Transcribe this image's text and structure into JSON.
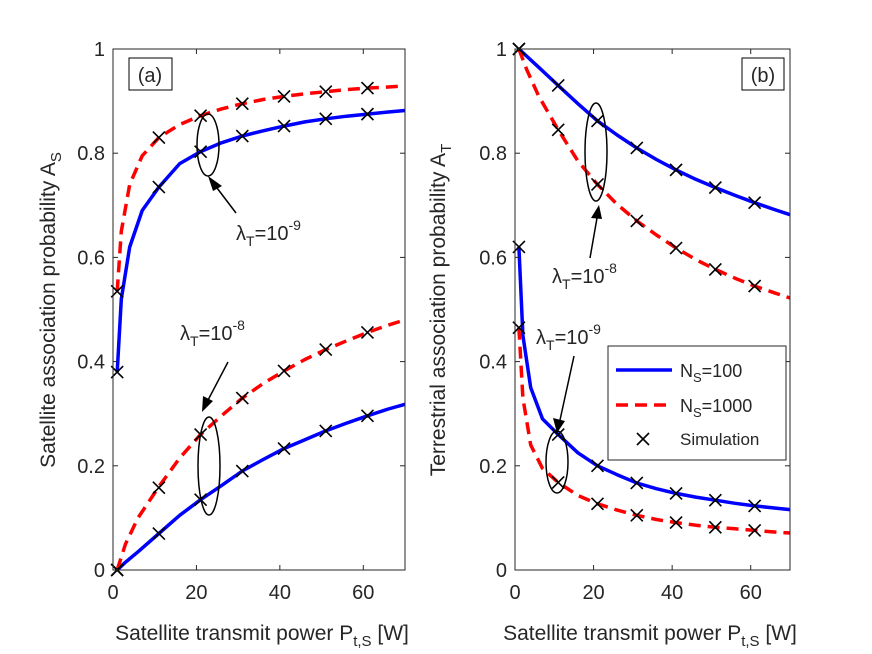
{
  "chart_data": [
    {
      "type": "line",
      "panel_label": "(a)",
      "xlabel": "Satellite transmit power P",
      "xlabel_sub": "t,S",
      "xlabel_unit": " [W]",
      "ylabel": "Satellite association probability A",
      "ylabel_sub": "S",
      "xlim": [
        0,
        70
      ],
      "ylim": [
        0,
        1
      ],
      "xticks": [
        0,
        20,
        40,
        60
      ],
      "yticks": [
        0,
        0.2,
        0.4,
        0.6,
        0.8,
        1
      ],
      "ytick_labels": [
        "0",
        "0.2",
        "0.4",
        "0.6",
        "0.8",
        "1"
      ],
      "series": [
        {
          "name": "N_S=100, λ_T=10^-9",
          "style": "solid",
          "color": "#0000ff",
          "x": [
            1,
            2,
            4,
            7,
            11,
            16,
            21,
            26,
            31,
            36,
            41,
            46,
            51,
            56,
            61,
            66,
            70
          ],
          "y": [
            0.38,
            0.52,
            0.62,
            0.69,
            0.735,
            0.78,
            0.803,
            0.82,
            0.833,
            0.843,
            0.852,
            0.86,
            0.866,
            0.871,
            0.875,
            0.879,
            0.882
          ]
        },
        {
          "name": "N_S=1000, λ_T=10^-9",
          "style": "dashed",
          "color": "#ff0000",
          "x": [
            1,
            2,
            4,
            7,
            11,
            16,
            21,
            26,
            31,
            36,
            41,
            46,
            51,
            56,
            61,
            66,
            70
          ],
          "y": [
            0.535,
            0.65,
            0.74,
            0.795,
            0.83,
            0.855,
            0.872,
            0.885,
            0.895,
            0.903,
            0.909,
            0.914,
            0.918,
            0.922,
            0.925,
            0.927,
            0.929
          ]
        },
        {
          "name": "N_S=100, λ_T=10^-8",
          "style": "solid",
          "color": "#0000ff",
          "x": [
            1,
            3,
            6,
            11,
            16,
            21,
            26,
            31,
            36,
            41,
            46,
            51,
            56,
            61,
            66,
            70
          ],
          "y": [
            0.0,
            0.015,
            0.035,
            0.07,
            0.105,
            0.135,
            0.162,
            0.19,
            0.212,
            0.233,
            0.25,
            0.267,
            0.282,
            0.296,
            0.309,
            0.318
          ]
        },
        {
          "name": "N_S=1000, λ_T=10^-8",
          "style": "dashed",
          "color": "#ff0000",
          "x": [
            1,
            3,
            6,
            11,
            16,
            21,
            26,
            31,
            36,
            41,
            46,
            51,
            56,
            61,
            66,
            70
          ],
          "y": [
            0.0,
            0.05,
            0.1,
            0.16,
            0.215,
            0.26,
            0.296,
            0.33,
            0.358,
            0.382,
            0.404,
            0.423,
            0.44,
            0.456,
            0.47,
            0.48
          ]
        }
      ],
      "markers": [
        {
          "x": [
            1,
            11,
            21,
            31,
            41,
            51,
            61
          ],
          "y": [
            0.38,
            0.735,
            0.803,
            0.833,
            0.852,
            0.866,
            0.875
          ]
        },
        {
          "x": [
            1,
            11,
            21,
            31,
            41,
            51,
            61
          ],
          "y": [
            0.535,
            0.83,
            0.872,
            0.895,
            0.909,
            0.918,
            0.925
          ]
        },
        {
          "x": [
            1,
            11,
            21,
            31,
            41,
            51,
            61
          ],
          "y": [
            0.0,
            0.07,
            0.135,
            0.19,
            0.233,
            0.267,
            0.296
          ]
        },
        {
          "x": [
            1,
            11,
            21,
            31,
            41,
            51,
            61
          ],
          "y": [
            0.0,
            0.158,
            0.26,
            0.33,
            0.382,
            0.423,
            0.456
          ]
        }
      ],
      "annotations": [
        {
          "label": "λ",
          "sub": "T",
          "eq": "=10",
          "sup": "-9"
        },
        {
          "label": "λ",
          "sub": "T",
          "eq": "=10",
          "sup": "-8"
        }
      ]
    },
    {
      "type": "line",
      "panel_label": "(b)",
      "xlabel": "Satellite transmit power P",
      "xlabel_sub": "t,S",
      "xlabel_unit": " [W]",
      "ylabel": "Terrestrial association probability A",
      "ylabel_sub": "T",
      "xlim": [
        0,
        70
      ],
      "ylim": [
        0,
        1
      ],
      "xticks": [
        0,
        20,
        40,
        60
      ],
      "yticks": [
        0,
        0.2,
        0.4,
        0.6,
        0.8,
        1
      ],
      "ytick_labels": [
        "0",
        "0.2",
        "0.4",
        "0.6",
        "0.8",
        "1"
      ],
      "series": [
        {
          "name": "N_S=100, λ_T=10^-8",
          "style": "solid",
          "color": "#0000ff",
          "x": [
            1,
            6,
            11,
            16,
            21,
            26,
            31,
            36,
            41,
            46,
            51,
            56,
            61,
            66,
            70
          ],
          "y": [
            1.0,
            0.965,
            0.93,
            0.895,
            0.862,
            0.835,
            0.81,
            0.788,
            0.768,
            0.75,
            0.734,
            0.719,
            0.705,
            0.692,
            0.682
          ]
        },
        {
          "name": "N_S=1000, λ_T=10^-8",
          "style": "dashed",
          "color": "#ff0000",
          "x": [
            1,
            3,
            6,
            11,
            16,
            21,
            26,
            31,
            36,
            41,
            46,
            51,
            56,
            61,
            66,
            70
          ],
          "y": [
            1.0,
            0.96,
            0.91,
            0.845,
            0.785,
            0.74,
            0.702,
            0.67,
            0.643,
            0.618,
            0.596,
            0.577,
            0.56,
            0.545,
            0.532,
            0.522
          ]
        },
        {
          "name": "N_S=100, λ_T=10^-9",
          "style": "solid",
          "color": "#0000ff",
          "x": [
            1,
            2,
            4,
            7,
            11,
            16,
            21,
            26,
            31,
            36,
            41,
            46,
            51,
            56,
            61,
            66,
            70
          ],
          "y": [
            0.62,
            0.45,
            0.35,
            0.29,
            0.26,
            0.225,
            0.2,
            0.183,
            0.167,
            0.156,
            0.147,
            0.14,
            0.134,
            0.128,
            0.123,
            0.119,
            0.116
          ]
        },
        {
          "name": "N_S=1000, λ_T=10^-9",
          "style": "dashed",
          "color": "#ff0000",
          "x": [
            1,
            2,
            4,
            7,
            11,
            16,
            21,
            26,
            31,
            36,
            41,
            46,
            51,
            56,
            61,
            66,
            70
          ],
          "y": [
            0.465,
            0.33,
            0.24,
            0.195,
            0.168,
            0.143,
            0.127,
            0.115,
            0.105,
            0.097,
            0.091,
            0.086,
            0.082,
            0.079,
            0.076,
            0.073,
            0.071
          ]
        }
      ],
      "markers": [
        {
          "x": [
            1,
            11,
            21,
            31,
            41,
            51,
            61
          ],
          "y": [
            1.0,
            0.93,
            0.862,
            0.81,
            0.768,
            0.734,
            0.705
          ]
        },
        {
          "x": [
            1,
            11,
            21,
            31,
            41,
            51,
            61
          ],
          "y": [
            1.0,
            0.845,
            0.74,
            0.67,
            0.618,
            0.577,
            0.545
          ]
        },
        {
          "x": [
            1,
            11,
            21,
            31,
            41,
            51,
            61
          ],
          "y": [
            0.62,
            0.26,
            0.2,
            0.167,
            0.147,
            0.134,
            0.123
          ]
        },
        {
          "x": [
            1,
            11,
            21,
            31,
            41,
            51,
            61
          ],
          "y": [
            0.465,
            0.168,
            0.127,
            0.105,
            0.091,
            0.082,
            0.076
          ]
        }
      ],
      "annotations": [
        {
          "label": "λ",
          "sub": "T",
          "eq": "=10",
          "sup": "-8"
        },
        {
          "label": "λ",
          "sub": "T",
          "eq": "=10",
          "sup": "-9"
        }
      ],
      "legend": {
        "placement": "lower-right",
        "entries": [
          {
            "label": "N",
            "sub": "S",
            "rest": "=100",
            "style": "solid",
            "color": "#0000ff"
          },
          {
            "label": "N",
            "sub": "S",
            "rest": "=1000",
            "style": "dashed",
            "color": "#ff0000"
          },
          {
            "label": "Simulation",
            "sub": "",
            "rest": "",
            "style": "marker",
            "color": "#000000"
          }
        ]
      }
    }
  ]
}
